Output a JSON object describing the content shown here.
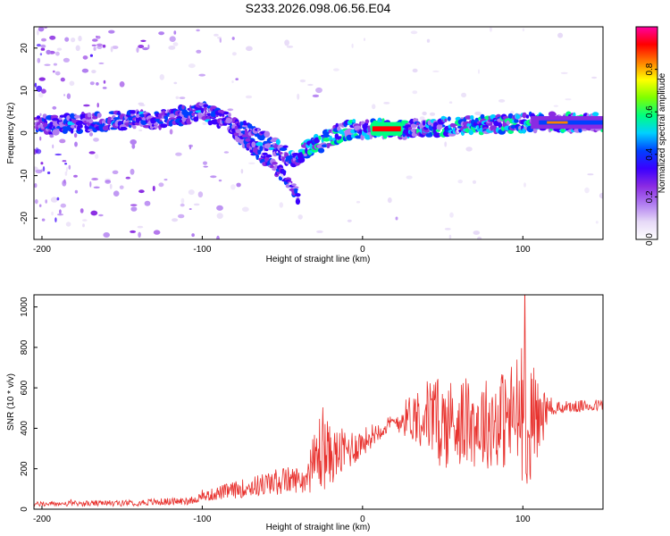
{
  "title": "S233.2026.098.06.56.E04",
  "colors": {
    "snr_line": "#e8322e",
    "spectro_bg": "#ffffff",
    "colormap": [
      "#ffffff",
      "#e6d9f7",
      "#b07cf0",
      "#8a2be2",
      "#3a00ff",
      "#0040ff",
      "#00d0ff",
      "#00ff80",
      "#7fff00",
      "#ffff00",
      "#ff8000",
      "#ff0000",
      "#ff00a0"
    ]
  },
  "chart_data": [
    {
      "type": "heatmap",
      "name": "spectrogram",
      "xlabel": "Height of straight line (km)",
      "ylabel": "Frequency (Hz)",
      "xlim": [
        -205,
        150
      ],
      "ylim": [
        -25,
        25
      ],
      "xticks": [
        "-200",
        "-100",
        "0",
        "100"
      ],
      "xtick_values": [
        -200,
        -100,
        0,
        100
      ],
      "yticks": [
        "20",
        "10",
        "0",
        "-10",
        "-20"
      ],
      "ytick_values": [
        20,
        10,
        0,
        -10,
        -20
      ],
      "colorbar": {
        "label": "Normalized spectral amplitude",
        "range": [
          0,
          1
        ],
        "ticks": [
          "0.0",
          "0.2",
          "0.4",
          "0.6",
          "0.8"
        ],
        "tick_values": [
          0.0,
          0.2,
          0.4,
          0.6,
          0.8
        ]
      },
      "features": {
        "main_ridge_x": [
          -190,
          -150,
          -120,
          -100,
          -80,
          -60,
          -45,
          -30,
          -15,
          -5,
          0,
          20,
          30,
          50,
          70,
          90,
          105,
          115,
          130,
          150
        ],
        "main_ridge_freq": [
          2,
          3,
          3.5,
          5,
          2,
          -2,
          -6,
          -3,
          0,
          1,
          1,
          1,
          1,
          1.5,
          2,
          2,
          2.5,
          2.5,
          2.5,
          2.5
        ],
        "secondary_branch_x": [
          -80,
          -70,
          -60,
          -50,
          -40
        ],
        "secondary_branch_freq": [
          0,
          -3,
          -6,
          -10,
          -15
        ],
        "strong_band_x": [
          5,
          25
        ],
        "strong_band_freq": 1
      }
    },
    {
      "type": "line",
      "name": "snr",
      "xlabel": "Height of straight line (km)",
      "ylabel": "SNR (10 * v/v)",
      "xlim": [
        -205,
        150
      ],
      "ylim": [
        0,
        1060
      ],
      "xticks": [
        "-200",
        "-100",
        "0",
        "100"
      ],
      "xtick_values": [
        -200,
        -100,
        0,
        100
      ],
      "yticks": [
        "0",
        "200",
        "400",
        "600",
        "800",
        "1000"
      ],
      "ytick_values": [
        0,
        200,
        400,
        600,
        800,
        1000
      ],
      "envelope_x": [
        -205,
        -150,
        -110,
        -100,
        -90,
        -70,
        -50,
        -35,
        -30,
        -25,
        -20,
        -10,
        0,
        10,
        20,
        30,
        40,
        50,
        60,
        70,
        80,
        90,
        95,
        100,
        105,
        110,
        120,
        130,
        140,
        150
      ],
      "envelope_mean": [
        25,
        30,
        40,
        60,
        80,
        110,
        140,
        150,
        230,
        310,
        260,
        290,
        330,
        390,
        430,
        460,
        470,
        420,
        440,
        420,
        430,
        450,
        460,
        480,
        430,
        450,
        500,
        505,
        510,
        515
      ],
      "envelope_spread": [
        12,
        15,
        20,
        25,
        35,
        50,
        70,
        60,
        160,
        230,
        140,
        110,
        70,
        50,
        40,
        120,
        180,
        230,
        220,
        220,
        230,
        260,
        300,
        350,
        330,
        200,
        30,
        30,
        30,
        30
      ]
    }
  ]
}
